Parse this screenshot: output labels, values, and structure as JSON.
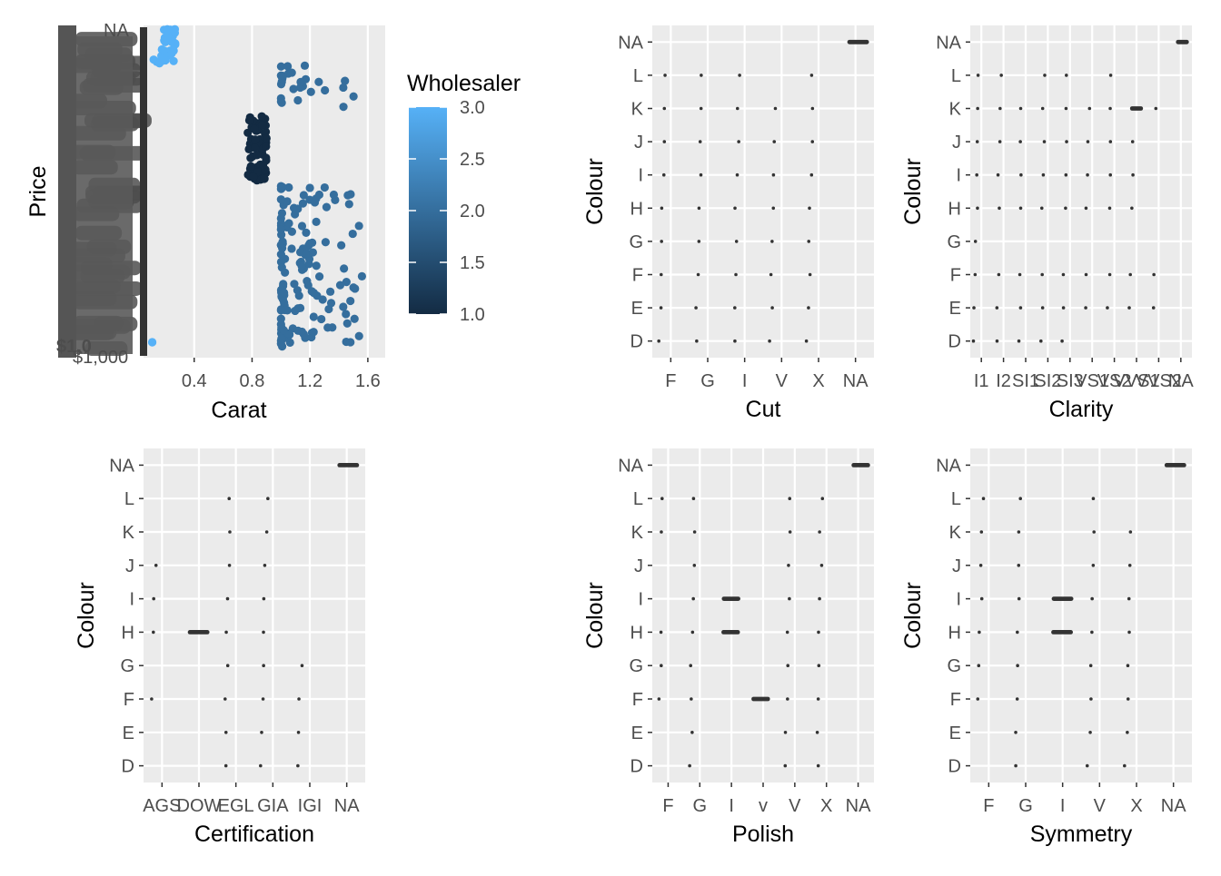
{
  "chart_data": [
    {
      "type": "scatter",
      "xlabel": "Carat",
      "ylabel": "Price",
      "x_ticks": [
        "0.4",
        "0.8",
        "1.2",
        "1.6"
      ],
      "x_range": [
        0.05,
        1.72
      ],
      "legend": {
        "title": "Wholesaler",
        "placement": "right",
        "ticks": [
          "3.0",
          "2.5",
          "2.0",
          "1.5",
          "1.0"
        ],
        "range": [
          1.0,
          3.0
        ],
        "low_color": "#132b43",
        "high_color": "#56b1f7"
      },
      "y_label_note": "overplotted unreadable price tick labels",
      "visible_y_tick_fragments": [
        "$1,0",
        "$1,000",
        "NA"
      ],
      "clusters": [
        {
          "wholesaler": 3,
          "x_from": 0.12,
          "x_to": 0.27,
          "level": "top",
          "n": 40
        },
        {
          "wholesaler": 3,
          "x_from": 0.11,
          "x_to": 0.11,
          "level": "bottom",
          "n": 2
        },
        {
          "wholesaler": 1,
          "x_from": 0.77,
          "x_to": 0.9,
          "level": "upper-middle",
          "n": 70
        },
        {
          "wholesaler": 2,
          "x_from": 1.0,
          "x_to": 1.58,
          "level": "spread",
          "n": 170
        }
      ]
    },
    {
      "type": "scatter",
      "xlabel": "Cut",
      "ylabel": "Colour",
      "x_categories": [
        "F",
        "G",
        "I",
        "V",
        "X",
        "NA"
      ],
      "y_categories": [
        "D",
        "E",
        "F",
        "G",
        "H",
        "I",
        "J",
        "K",
        "L",
        "NA"
      ],
      "note": "jittered points; NA colour rows concentrated at NA category",
      "marks": [
        {
          "x": "F",
          "y": "D"
        },
        {
          "x": "F",
          "y": "E"
        },
        {
          "x": "F",
          "y": "F"
        },
        {
          "x": "F",
          "y": "G"
        },
        {
          "x": "F",
          "y": "H"
        },
        {
          "x": "F",
          "y": "I"
        },
        {
          "x": "F",
          "y": "J"
        },
        {
          "x": "F",
          "y": "K"
        },
        {
          "x": "F",
          "y": "L"
        },
        {
          "x": "G",
          "y": "D"
        },
        {
          "x": "G",
          "y": "E"
        },
        {
          "x": "G",
          "y": "F"
        },
        {
          "x": "G",
          "y": "G"
        },
        {
          "x": "G",
          "y": "H"
        },
        {
          "x": "G",
          "y": "I"
        },
        {
          "x": "G",
          "y": "J"
        },
        {
          "x": "G",
          "y": "K"
        },
        {
          "x": "G",
          "y": "L"
        },
        {
          "x": "I",
          "y": "D"
        },
        {
          "x": "I",
          "y": "E"
        },
        {
          "x": "I",
          "y": "F"
        },
        {
          "x": "I",
          "y": "G"
        },
        {
          "x": "I",
          "y": "H"
        },
        {
          "x": "I",
          "y": "I"
        },
        {
          "x": "I",
          "y": "J"
        },
        {
          "x": "I",
          "y": "K"
        },
        {
          "x": "I",
          "y": "L"
        },
        {
          "x": "V",
          "y": "D"
        },
        {
          "x": "V",
          "y": "E"
        },
        {
          "x": "V",
          "y": "F"
        },
        {
          "x": "V",
          "y": "G"
        },
        {
          "x": "V",
          "y": "H"
        },
        {
          "x": "V",
          "y": "I"
        },
        {
          "x": "V",
          "y": "J"
        },
        {
          "x": "V",
          "y": "K"
        },
        {
          "x": "X",
          "y": "D"
        },
        {
          "x": "X",
          "y": "E"
        },
        {
          "x": "X",
          "y": "F"
        },
        {
          "x": "X",
          "y": "G"
        },
        {
          "x": "X",
          "y": "H"
        },
        {
          "x": "X",
          "y": "I"
        },
        {
          "x": "X",
          "y": "J"
        },
        {
          "x": "X",
          "y": "K"
        },
        {
          "x": "X",
          "y": "L"
        },
        {
          "x": "NA",
          "y": "NA",
          "wide": true
        }
      ]
    },
    {
      "type": "scatter",
      "xlabel": "Clarity",
      "ylabel": "Colour",
      "x_categories": [
        "I1",
        "I2",
        "SI1",
        "SI2",
        "SI3",
        "VS1",
        "VS2",
        "VVS1",
        "VVS2",
        "NA"
      ],
      "x_tick_text_as_rendered": [
        "I1",
        "I2",
        "SI1",
        "SI2",
        "SI3",
        "VS1",
        "VS2",
        "VVS1",
        "VVS2",
        "NA"
      ],
      "y_categories": [
        "D",
        "E",
        "F",
        "G",
        "H",
        "I",
        "J",
        "K",
        "L",
        "NA"
      ],
      "marks": [
        {
          "x": "I1",
          "y": "D"
        },
        {
          "x": "I1",
          "y": "E"
        },
        {
          "x": "I1",
          "y": "F"
        },
        {
          "x": "I1",
          "y": "G"
        },
        {
          "x": "I1",
          "y": "H"
        },
        {
          "x": "I1",
          "y": "I"
        },
        {
          "x": "I1",
          "y": "J"
        },
        {
          "x": "I1",
          "y": "K"
        },
        {
          "x": "I1",
          "y": "L"
        },
        {
          "x": "I2",
          "y": "D"
        },
        {
          "x": "I2",
          "y": "E"
        },
        {
          "x": "I2",
          "y": "F"
        },
        {
          "x": "I2",
          "y": "H"
        },
        {
          "x": "I2",
          "y": "I"
        },
        {
          "x": "I2",
          "y": "J"
        },
        {
          "x": "I2",
          "y": "K"
        },
        {
          "x": "I2",
          "y": "L"
        },
        {
          "x": "SI1",
          "y": "D"
        },
        {
          "x": "SI1",
          "y": "E"
        },
        {
          "x": "SI1",
          "y": "F"
        },
        {
          "x": "SI1",
          "y": "H"
        },
        {
          "x": "SI1",
          "y": "I"
        },
        {
          "x": "SI1",
          "y": "J"
        },
        {
          "x": "SI1",
          "y": "K"
        },
        {
          "x": "SI2",
          "y": "D"
        },
        {
          "x": "SI2",
          "y": "E"
        },
        {
          "x": "SI2",
          "y": "F"
        },
        {
          "x": "SI2",
          "y": "H"
        },
        {
          "x": "SI2",
          "y": "I"
        },
        {
          "x": "SI2",
          "y": "J"
        },
        {
          "x": "SI2",
          "y": "K"
        },
        {
          "x": "SI2",
          "y": "L"
        },
        {
          "x": "SI3",
          "y": "D"
        },
        {
          "x": "SI3",
          "y": "E"
        },
        {
          "x": "SI3",
          "y": "F"
        },
        {
          "x": "SI3",
          "y": "H"
        },
        {
          "x": "SI3",
          "y": "I"
        },
        {
          "x": "SI3",
          "y": "J"
        },
        {
          "x": "SI3",
          "y": "K"
        },
        {
          "x": "SI3",
          "y": "L"
        },
        {
          "x": "VS1",
          "y": "E"
        },
        {
          "x": "VS1",
          "y": "F"
        },
        {
          "x": "VS1",
          "y": "H"
        },
        {
          "x": "VS1",
          "y": "I"
        },
        {
          "x": "VS1",
          "y": "J"
        },
        {
          "x": "VS1",
          "y": "K"
        },
        {
          "x": "VS2",
          "y": "E"
        },
        {
          "x": "VS2",
          "y": "F"
        },
        {
          "x": "VS2",
          "y": "H"
        },
        {
          "x": "VS2",
          "y": "I"
        },
        {
          "x": "VS2",
          "y": "J"
        },
        {
          "x": "VS2",
          "y": "K"
        },
        {
          "x": "VS2",
          "y": "L"
        },
        {
          "x": "VVS1",
          "y": "E"
        },
        {
          "x": "VVS1",
          "y": "F"
        },
        {
          "x": "VVS1",
          "y": "H"
        },
        {
          "x": "VVS1",
          "y": "I"
        },
        {
          "x": "VVS1",
          "y": "J"
        },
        {
          "x": "VVS1",
          "y": "K",
          "wide": true
        },
        {
          "x": "VVS2",
          "y": "E"
        },
        {
          "x": "VVS2",
          "y": "F"
        },
        {
          "x": "VVS2",
          "y": "K"
        },
        {
          "x": "NA",
          "y": "NA",
          "wide": true
        }
      ]
    },
    {
      "type": "scatter",
      "xlabel": "Certification",
      "ylabel": "Colour",
      "x_categories": [
        "AGS",
        "DOW",
        "EGL",
        "GIA",
        "IGI",
        "NA"
      ],
      "x_tick_text_as_rendered": [
        "AGS",
        "DOW",
        "EGL",
        "GIA",
        "IGI",
        "NA"
      ],
      "y_categories": [
        "D",
        "E",
        "F",
        "G",
        "H",
        "I",
        "J",
        "K",
        "L",
        "NA"
      ],
      "marks": [
        {
          "x": "AGS",
          "y": "F"
        },
        {
          "x": "AGS",
          "y": "H"
        },
        {
          "x": "AGS",
          "y": "I"
        },
        {
          "x": "AGS",
          "y": "J"
        },
        {
          "x": "DOW",
          "y": "H",
          "wide": true
        },
        {
          "x": "EGL",
          "y": "D"
        },
        {
          "x": "EGL",
          "y": "E"
        },
        {
          "x": "EGL",
          "y": "F"
        },
        {
          "x": "EGL",
          "y": "G"
        },
        {
          "x": "EGL",
          "y": "H"
        },
        {
          "x": "EGL",
          "y": "I"
        },
        {
          "x": "EGL",
          "y": "J"
        },
        {
          "x": "EGL",
          "y": "K"
        },
        {
          "x": "EGL",
          "y": "L"
        },
        {
          "x": "GIA",
          "y": "D"
        },
        {
          "x": "GIA",
          "y": "E"
        },
        {
          "x": "GIA",
          "y": "F"
        },
        {
          "x": "GIA",
          "y": "G"
        },
        {
          "x": "GIA",
          "y": "H"
        },
        {
          "x": "GIA",
          "y": "I"
        },
        {
          "x": "GIA",
          "y": "J"
        },
        {
          "x": "GIA",
          "y": "K"
        },
        {
          "x": "GIA",
          "y": "L"
        },
        {
          "x": "IGI",
          "y": "D"
        },
        {
          "x": "IGI",
          "y": "E"
        },
        {
          "x": "IGI",
          "y": "F"
        },
        {
          "x": "IGI",
          "y": "G"
        },
        {
          "x": "NA",
          "y": "NA",
          "wide": true
        }
      ]
    },
    {
      "type": "scatter",
      "xlabel": "Polish",
      "ylabel": "Colour",
      "x_categories": [
        "F",
        "G",
        "I",
        "v",
        "V",
        "X",
        "NA"
      ],
      "y_categories": [
        "D",
        "E",
        "F",
        "G",
        "H",
        "I",
        "J",
        "K",
        "L",
        "NA"
      ],
      "marks": [
        {
          "x": "F",
          "y": "F"
        },
        {
          "x": "F",
          "y": "G"
        },
        {
          "x": "F",
          "y": "H"
        },
        {
          "x": "F",
          "y": "K"
        },
        {
          "x": "F",
          "y": "L"
        },
        {
          "x": "G",
          "y": "D"
        },
        {
          "x": "G",
          "y": "E"
        },
        {
          "x": "G",
          "y": "F"
        },
        {
          "x": "G",
          "y": "G"
        },
        {
          "x": "G",
          "y": "H"
        },
        {
          "x": "G",
          "y": "I"
        },
        {
          "x": "G",
          "y": "J"
        },
        {
          "x": "G",
          "y": "K"
        },
        {
          "x": "G",
          "y": "L"
        },
        {
          "x": "I",
          "y": "H",
          "wide": true
        },
        {
          "x": "I",
          "y": "I",
          "wide": true
        },
        {
          "x": "v",
          "y": "F",
          "wide": true
        },
        {
          "x": "V",
          "y": "D"
        },
        {
          "x": "V",
          "y": "E"
        },
        {
          "x": "V",
          "y": "F"
        },
        {
          "x": "V",
          "y": "G"
        },
        {
          "x": "V",
          "y": "H"
        },
        {
          "x": "V",
          "y": "I"
        },
        {
          "x": "V",
          "y": "J"
        },
        {
          "x": "V",
          "y": "K"
        },
        {
          "x": "V",
          "y": "L"
        },
        {
          "x": "X",
          "y": "D"
        },
        {
          "x": "X",
          "y": "E"
        },
        {
          "x": "X",
          "y": "F"
        },
        {
          "x": "X",
          "y": "G"
        },
        {
          "x": "X",
          "y": "H"
        },
        {
          "x": "X",
          "y": "I"
        },
        {
          "x": "X",
          "y": "J"
        },
        {
          "x": "X",
          "y": "K"
        },
        {
          "x": "X",
          "y": "L"
        },
        {
          "x": "NA",
          "y": "NA",
          "wide": true
        }
      ]
    },
    {
      "type": "scatter",
      "xlabel": "Symmetry",
      "ylabel": "Colour",
      "x_categories": [
        "F",
        "G",
        "I",
        "V",
        "X",
        "NA"
      ],
      "y_categories": [
        "D",
        "E",
        "F",
        "G",
        "H",
        "I",
        "J",
        "K",
        "L",
        "NA"
      ],
      "marks": [
        {
          "x": "F",
          "y": "F"
        },
        {
          "x": "F",
          "y": "G"
        },
        {
          "x": "F",
          "y": "H"
        },
        {
          "x": "F",
          "y": "I"
        },
        {
          "x": "F",
          "y": "J"
        },
        {
          "x": "F",
          "y": "K"
        },
        {
          "x": "F",
          "y": "L"
        },
        {
          "x": "G",
          "y": "D"
        },
        {
          "x": "G",
          "y": "E"
        },
        {
          "x": "G",
          "y": "F"
        },
        {
          "x": "G",
          "y": "G"
        },
        {
          "x": "G",
          "y": "H"
        },
        {
          "x": "G",
          "y": "I"
        },
        {
          "x": "G",
          "y": "J"
        },
        {
          "x": "G",
          "y": "K"
        },
        {
          "x": "G",
          "y": "L"
        },
        {
          "x": "I",
          "y": "H",
          "wide": true
        },
        {
          "x": "I",
          "y": "I",
          "wide": true
        },
        {
          "x": "V",
          "y": "D"
        },
        {
          "x": "V",
          "y": "E"
        },
        {
          "x": "V",
          "y": "F"
        },
        {
          "x": "V",
          "y": "G"
        },
        {
          "x": "V",
          "y": "H"
        },
        {
          "x": "V",
          "y": "I"
        },
        {
          "x": "V",
          "y": "J"
        },
        {
          "x": "V",
          "y": "K"
        },
        {
          "x": "V",
          "y": "L"
        },
        {
          "x": "X",
          "y": "D"
        },
        {
          "x": "X",
          "y": "E"
        },
        {
          "x": "X",
          "y": "F"
        },
        {
          "x": "X",
          "y": "G"
        },
        {
          "x": "X",
          "y": "H"
        },
        {
          "x": "X",
          "y": "I"
        },
        {
          "x": "X",
          "y": "J"
        },
        {
          "x": "X",
          "y": "K"
        },
        {
          "x": "NA",
          "y": "NA",
          "wide": true
        }
      ]
    }
  ],
  "colors": {
    "panel_bg": "#ebebeb",
    "grid": "#ffffff",
    "point": "#333333",
    "tick_text": "#4d4d4d",
    "title_text": "#000000"
  }
}
